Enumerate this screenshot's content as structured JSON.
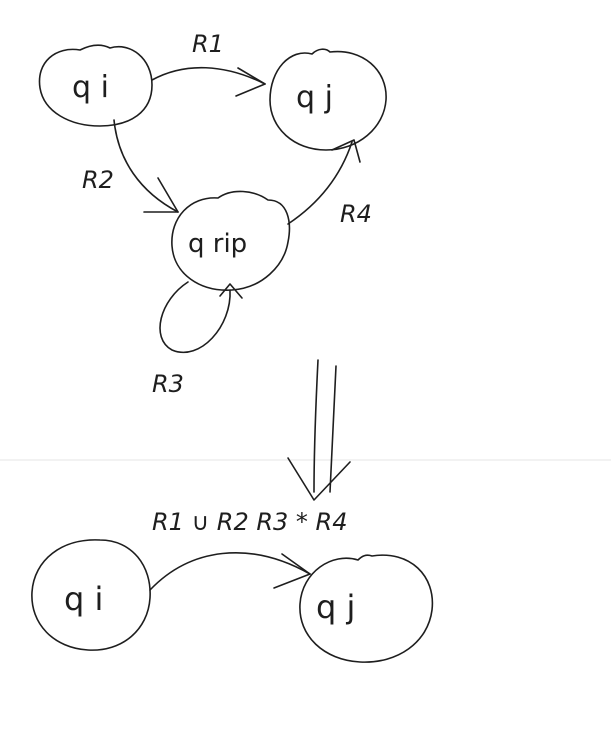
{
  "top": {
    "states": {
      "qi": "q i",
      "qj": "q j",
      "qrip": "q rip"
    },
    "edges": {
      "qi_to_qj": "R1",
      "qi_to_qrip": "R2",
      "qrip_loop": "R3",
      "qrip_to_qj": "R4"
    }
  },
  "bottom": {
    "states": {
      "qi": "q i",
      "qj": "q j"
    },
    "edge_label": "R1 ∪ R2 R3 * R4"
  },
  "colors": {
    "ink": "#1e1e1e",
    "background": "#ffffff"
  }
}
